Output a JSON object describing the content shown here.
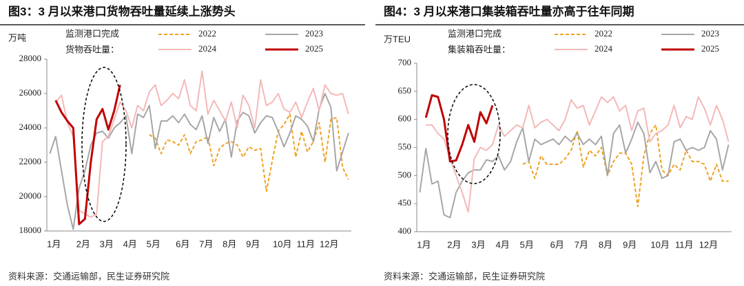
{
  "chart_data": [
    {
      "type": "line",
      "title": "图3：3 月以来港口货物吞吐量延续上涨势头",
      "y_label": "万吨",
      "legend_title": [
        "监测港口完成",
        "货物吞吐量："
      ],
      "categories": [
        "1月",
        null,
        null,
        null,
        null,
        "2月",
        null,
        null,
        null,
        "3月",
        null,
        null,
        null,
        "4月",
        null,
        null,
        null,
        "5月",
        null,
        null,
        null,
        null,
        "6月",
        null,
        null,
        null,
        "7月",
        null,
        null,
        null,
        "8月",
        null,
        null,
        null,
        "9月",
        null,
        null,
        null,
        null,
        "10月",
        null,
        null,
        null,
        "11月",
        null,
        null,
        null,
        "12月",
        null,
        null,
        null,
        null
      ],
      "series": [
        {
          "name": "2022",
          "color": "#f0a020",
          "dash": true,
          "values": [
            null,
            null,
            null,
            null,
            null,
            null,
            null,
            null,
            null,
            null,
            null,
            null,
            null,
            null,
            null,
            null,
            null,
            23600,
            23400,
            22500,
            23300,
            23200,
            23000,
            23600,
            22500,
            23200,
            23300,
            23500,
            21800,
            22800,
            23100,
            23200,
            23000,
            22300,
            22900,
            22700,
            22800,
            20300,
            22100,
            23800,
            24200,
            24800,
            22300,
            23800,
            22600,
            23200,
            24300,
            22000,
            24500,
            24600,
            21700,
            21000
          ]
        },
        {
          "name": "2023",
          "color": "#a6a6a6",
          "dash": false,
          "values": [
            22500,
            23500,
            21500,
            19500,
            18100,
            20500,
            21500,
            23000,
            23700,
            23800,
            23400,
            24000,
            24300,
            24700,
            22500,
            24800,
            24600,
            25300,
            22800,
            24400,
            24400,
            24700,
            24300,
            24800,
            24200,
            23900,
            24700,
            23100,
            24600,
            23800,
            24500,
            22300,
            24400,
            24900,
            24700,
            23700,
            24300,
            24700,
            24600,
            23800,
            22900,
            23700,
            24700,
            24500,
            24100,
            23200,
            25100,
            26000,
            25200,
            21500,
            22600,
            23700
          ]
        },
        {
          "name": "2024",
          "color": "#f4b8b8",
          "dash": false,
          "values": [
            null,
            25500,
            25900,
            24300,
            23500,
            19200,
            19000,
            18800,
            19000,
            23200,
            23500,
            24500,
            25500,
            25000,
            24000,
            25300,
            25000,
            26100,
            26500,
            25300,
            25600,
            26000,
            25700,
            26800,
            25300,
            25000,
            27300,
            24800,
            25600,
            25000,
            24400,
            25500,
            24000,
            25900,
            25300,
            24000,
            26800,
            25300,
            25500,
            26000,
            25100,
            24900,
            25500,
            24600,
            25500,
            26300,
            25000,
            26500,
            26000,
            25900,
            26000,
            24800
          ]
        },
        {
          "name": "2025",
          "color": "#c00000",
          "dash": false,
          "values": [
            null,
            25600,
            24900,
            24400,
            24000,
            18400,
            18700,
            22000,
            24500,
            25100,
            23900,
            25000,
            26500,
            null,
            null,
            null,
            null,
            null,
            null,
            null,
            null,
            null,
            null,
            null,
            null,
            null,
            null,
            null,
            null,
            null,
            null,
            null,
            null,
            null,
            null,
            null,
            null,
            null,
            null,
            null,
            null,
            null,
            null,
            null,
            null,
            null,
            null,
            null,
            null,
            null,
            null,
            null
          ]
        }
      ],
      "ylim": [
        18000,
        28000
      ],
      "yticks": [
        18000,
        20000,
        22000,
        24000,
        26000,
        28000
      ],
      "source": "资料来源：交通运输部，民生证券研究院"
    },
    {
      "type": "line",
      "title": "图4：3 月以来港口集装箱吞吐量亦高于往年同期",
      "y_label": "万TEU",
      "legend_title": [
        "监测港口完成",
        "集装箱吞吐量："
      ],
      "categories": [
        "1月",
        null,
        null,
        null,
        null,
        "2月",
        null,
        null,
        null,
        "3月",
        null,
        null,
        null,
        "4月",
        null,
        null,
        null,
        "5月",
        null,
        null,
        null,
        null,
        "6月",
        null,
        null,
        null,
        "7月",
        null,
        null,
        null,
        "8月",
        null,
        null,
        null,
        "9月",
        null,
        null,
        null,
        null,
        "10月",
        null,
        null,
        null,
        "11月",
        null,
        null,
        null,
        "12月",
        null,
        null,
        null,
        null
      ],
      "series": [
        {
          "name": "2022",
          "color": "#f0a020",
          "dash": true,
          "values": [
            null,
            null,
            null,
            null,
            null,
            null,
            null,
            null,
            null,
            null,
            null,
            null,
            null,
            null,
            null,
            null,
            null,
            520,
            525,
            495,
            535,
            520,
            520,
            520,
            530,
            545,
            580,
            515,
            545,
            535,
            550,
            500,
            525,
            540,
            540,
            520,
            445,
            535,
            575,
            590,
            510,
            500,
            520,
            510,
            545,
            525,
            525,
            520,
            490,
            520,
            490,
            490
          ]
        },
        {
          "name": "2023",
          "color": "#a6a6a6",
          "dash": false,
          "values": [
            470,
            548,
            485,
            490,
            430,
            425,
            470,
            490,
            505,
            510,
            510,
            528,
            525,
            535,
            510,
            525,
            560,
            585,
            525,
            565,
            555,
            560,
            565,
            555,
            570,
            560,
            575,
            555,
            565,
            555,
            570,
            500,
            575,
            590,
            540,
            565,
            595,
            575,
            505,
            525,
            495,
            500,
            560,
            565,
            545,
            550,
            545,
            550,
            580,
            565,
            510,
            555
          ]
        },
        {
          "name": "2024",
          "color": "#f4b8b8",
          "dash": false,
          "values": [
            null,
            590,
            590,
            575,
            565,
            530,
            500,
            470,
            435,
            530,
            550,
            545,
            555,
            590,
            570,
            580,
            590,
            585,
            625,
            585,
            595,
            600,
            590,
            580,
            600,
            635,
            620,
            625,
            590,
            615,
            640,
            630,
            640,
            615,
            625,
            580,
            615,
            620,
            560,
            575,
            580,
            590,
            625,
            585,
            605,
            600,
            640,
            620,
            590,
            625,
            600,
            560
          ]
        },
        {
          "name": "2025",
          "color": "#c00000",
          "dash": false,
          "values": [
            null,
            603,
            643,
            640,
            600,
            525,
            527,
            555,
            590,
            560,
            613,
            593,
            625,
            null,
            null,
            null,
            null,
            null,
            null,
            null,
            null,
            null,
            null,
            null,
            null,
            null,
            null,
            null,
            null,
            null,
            null,
            null,
            null,
            null,
            null,
            null,
            null,
            null,
            null,
            null,
            null,
            null,
            null,
            null,
            null,
            null,
            null,
            null,
            null,
            null,
            null,
            null
          ]
        }
      ],
      "ylim": [
        400,
        700
      ],
      "yticks": [
        400,
        450,
        500,
        550,
        600,
        650,
        700
      ],
      "source": "资料来源：交通运输部，民生证券研究院"
    }
  ]
}
